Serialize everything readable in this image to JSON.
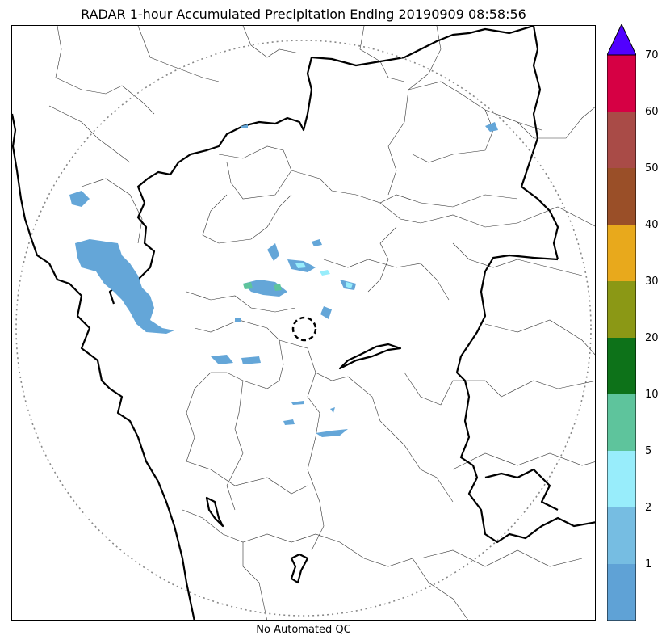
{
  "title": "RADAR 1-hour Accumulated Precipitation Ending 20190909 08:58:56",
  "caption": "No Automated QC",
  "colorbar": {
    "labels": [
      "1",
      "2",
      "5",
      "10",
      "20",
      "30",
      "40",
      "50",
      "60",
      "70"
    ],
    "colors": [
      "#5fa2d6",
      "#76bde2",
      "#98edfb",
      "#5ec49c",
      "#0d7219",
      "#8b9815",
      "#e8a91c",
      "#9a4f28",
      "#a94b47",
      "#d60044"
    ],
    "extend_color": "#5100ff"
  },
  "map": {
    "range_ring_color": "#888888",
    "rain_color": "#64a6d8",
    "radar_site_marker": "dashed-circle"
  }
}
